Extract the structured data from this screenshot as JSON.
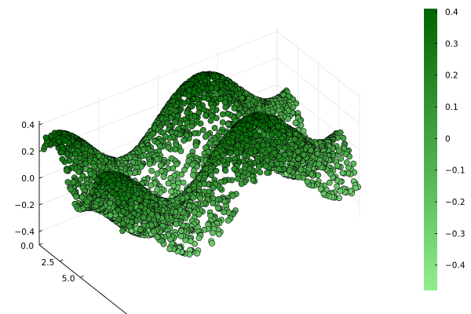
{
  "chart_data": {
    "type": "scatter3d",
    "title": "",
    "xlabel": "",
    "ylabel": "",
    "zlabel": "",
    "grid": true,
    "legend": "none",
    "x_axis_ticks": [
      0.0,
      2.5,
      5.0
    ],
    "x_axis_tick_labels": [
      "0.0",
      "2.5",
      "5.0"
    ],
    "z_axis_ticks": [
      -0.4,
      -0.2,
      0.0,
      0.2,
      0.4
    ],
    "z_axis_tick_labels": [
      "−0.4",
      "−0.2",
      "0.0",
      "0.2",
      "0.4"
    ],
    "zlim": [
      -0.5,
      0.43
    ],
    "surface_function": "z = 0.2*sin(x) + 0.2*cos(y), sampled as a dense point cloud",
    "x_range": [
      0,
      10
    ],
    "y_range": [
      0,
      10
    ],
    "marker_color_low": "#90ee90",
    "marker_color_high": "#006400",
    "marker_edge_color": "#000000",
    "colorbar": {
      "min": -0.48,
      "max": 0.41,
      "ticks": [
        -0.4,
        -0.3,
        -0.2,
        -0.1,
        0.0,
        0.1,
        0.2,
        0.3,
        0.4
      ],
      "tick_labels": [
        "−0.4",
        "−0.3",
        "−0.2",
        "−0.1",
        "0",
        "0.1",
        "0.2",
        "0.3",
        "0.4"
      ]
    }
  }
}
